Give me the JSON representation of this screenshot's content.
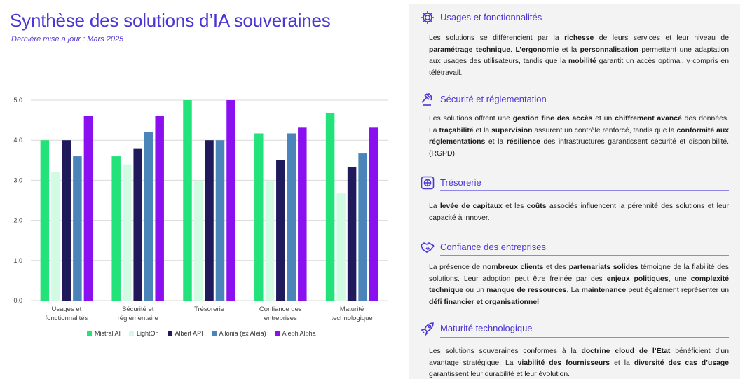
{
  "header": {
    "title": "Synthèse des solutions d’IA souveraines",
    "subtitle": "Dernière mise à jour : Mars 2025"
  },
  "chart_data": {
    "type": "bar",
    "categories": [
      [
        "Usages et",
        "fonctionnalités"
      ],
      [
        "Sécurité et",
        "réglementaire"
      ],
      [
        "Trésorerie"
      ],
      [
        "Confiance des",
        "entreprises"
      ],
      [
        "Maturité",
        "technologique"
      ]
    ],
    "series": [
      {
        "name": "Mistral AI",
        "color": "#22e27a",
        "values": [
          4.0,
          3.6,
          5.0,
          4.17,
          4.67
        ]
      },
      {
        "name": "LightOn",
        "color": "#d2fbe3",
        "values": [
          3.2,
          3.4,
          3.0,
          3.0,
          2.67
        ]
      },
      {
        "name": "Albert API",
        "color": "#1e1a5c",
        "values": [
          4.0,
          3.8,
          4.0,
          3.5,
          3.33
        ]
      },
      {
        "name": "Allonia (ex Aleia)",
        "color": "#4a84b8",
        "values": [
          3.6,
          4.2,
          4.0,
          4.17,
          3.67
        ]
      },
      {
        "name": "Aleph Alpha",
        "color": "#8a10f0",
        "values": [
          4.6,
          4.6,
          5.0,
          4.33,
          4.33
        ]
      }
    ],
    "yticks": [
      "0.0",
      "1.0",
      "2.0",
      "3.0",
      "4.0",
      "5.0"
    ],
    "ylim": [
      0,
      5
    ],
    "grid": true,
    "legend": "bottom"
  },
  "panel": {
    "sections": [
      {
        "icon": "gear-icon",
        "title": "Usages et fonctionnalités",
        "body": [
          [
            "Les solutions se différencient par la ",
            false
          ],
          [
            "richesse",
            true
          ],
          [
            " de leurs services et leur niveau de ",
            false
          ],
          [
            "paramétrage technique",
            true
          ],
          [
            ". ",
            false
          ],
          [
            "L’ergonomie",
            true
          ],
          [
            " et la ",
            false
          ],
          [
            "personnalisation",
            true
          ],
          [
            " permettent une adaptation aux usages des utilisateurs, tandis que la ",
            false
          ],
          [
            "mobilité",
            true
          ],
          [
            " garantit un accès optimal, y compris en télétravail.",
            false
          ]
        ]
      },
      {
        "icon": "gavel-icon",
        "title": "Sécurité et réglementation",
        "body": [
          [
            "Les solutions offrent une ",
            false
          ],
          [
            "gestion fine des accès",
            true
          ],
          [
            " et un ",
            false
          ],
          [
            "chiffrement avancé",
            true
          ],
          [
            " des données. La ",
            false
          ],
          [
            "traçabilité",
            true
          ],
          [
            " et la ",
            false
          ],
          [
            "supervision",
            true
          ],
          [
            " assurent un contrôle renforcé, tandis que la ",
            false
          ],
          [
            "conformité aux réglementations",
            true
          ],
          [
            " et la ",
            false
          ],
          [
            "résilience",
            true
          ],
          [
            " des infrastructures garantissent sécurité et disponibilité. (RGPD)",
            false
          ]
        ]
      },
      {
        "icon": "safe-icon",
        "title": "Trésorerie",
        "body": [
          [
            "La ",
            false
          ],
          [
            "levée de capitaux",
            true
          ],
          [
            " et les ",
            false
          ],
          [
            "coûts",
            true
          ],
          [
            " associés influencent la pérennité des solutions et leur capacité à innover.",
            false
          ]
        ]
      },
      {
        "icon": "handshake-icon",
        "title": "Confiance des entreprises",
        "body": [
          [
            "La présence de ",
            false
          ],
          [
            "nombreux clients",
            true
          ],
          [
            " et des ",
            false
          ],
          [
            "partenariats solides",
            true
          ],
          [
            " témoigne de la fiabilité des solutions. Leur adoption peut être freinée par des ",
            false
          ],
          [
            "enjeux politiques",
            true
          ],
          [
            ", une ",
            false
          ],
          [
            "complexité technique",
            true
          ],
          [
            " ou un ",
            false
          ],
          [
            "manque de ressources",
            true
          ],
          [
            ". La ",
            false
          ],
          [
            "maintenance",
            true
          ],
          [
            " peut également représenter un ",
            false
          ],
          [
            "défi financier et organisationnel",
            true
          ]
        ]
      },
      {
        "icon": "rocket-icon",
        "title": "Maturité technologique",
        "body": [
          [
            "Les solutions souveraines conformes à la ",
            false
          ],
          [
            "doctrine cloud de l’État",
            true
          ],
          [
            " bénéficient d’un avantage stratégique. La ",
            false
          ],
          [
            "viabilité des fournisseurs",
            true
          ],
          [
            " et la ",
            false
          ],
          [
            "diversité des cas d’usage",
            true
          ],
          [
            " garantissent leur durabilité et leur évolution.",
            false
          ]
        ]
      }
    ]
  }
}
